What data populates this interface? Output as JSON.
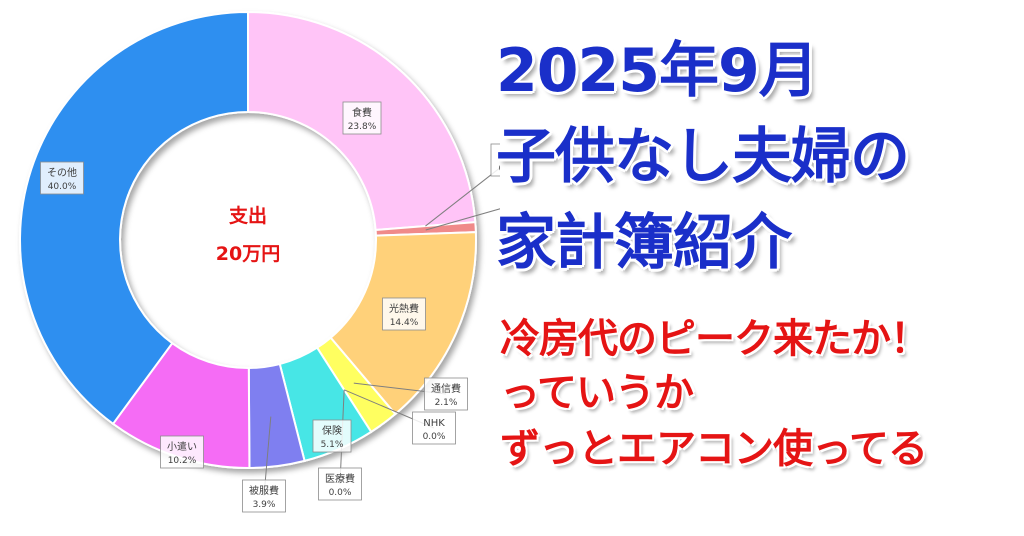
{
  "title": {
    "line1": "2025年9月",
    "line2": "子供なし夫婦の",
    "line3": "家計簿紹介"
  },
  "subtitle": {
    "line1": "冷房代のピーク来たか！",
    "line2": "っていうか",
    "line3": "ずっとエアコン使ってる"
  },
  "center": {
    "label": "支出",
    "total": "20万円"
  },
  "chart_data": {
    "type": "pie",
    "variant": "donut",
    "start": "top, clockwise",
    "categories": [
      "食費",
      "住宅",
      "日用品",
      "光熱費",
      "通信費",
      "NHK",
      "医療費",
      "保険",
      "被服費",
      "小遣い",
      "その他"
    ],
    "labels": [
      "食費",
      "住宅",
      "日用品",
      "光熱費",
      "通信費",
      "NHK",
      "医療費",
      "保険",
      "被服費",
      "小遣い",
      "その他"
    ],
    "values": [
      23.8,
      0.0,
      0.7,
      14.4,
      2.1,
      0.0,
      0.0,
      5.1,
      3.9,
      10.2,
      40.0
    ],
    "value_labels": [
      "23.8%",
      "0.0%",
      "0.7%",
      "14.4%",
      "2.1%",
      "0.0%",
      "0.0%",
      "5.1%",
      "3.9%",
      "10.2%",
      "40.0%"
    ],
    "colors": [
      "#ffc4f7",
      "#d9d9d9",
      "#f08a8a",
      "#ffd17a",
      "#ffff60",
      "#e8e8e8",
      "#c8f4ff",
      "#46e6e6",
      "#7f7ff0",
      "#f56cf5",
      "#2f8ff0"
    ]
  }
}
